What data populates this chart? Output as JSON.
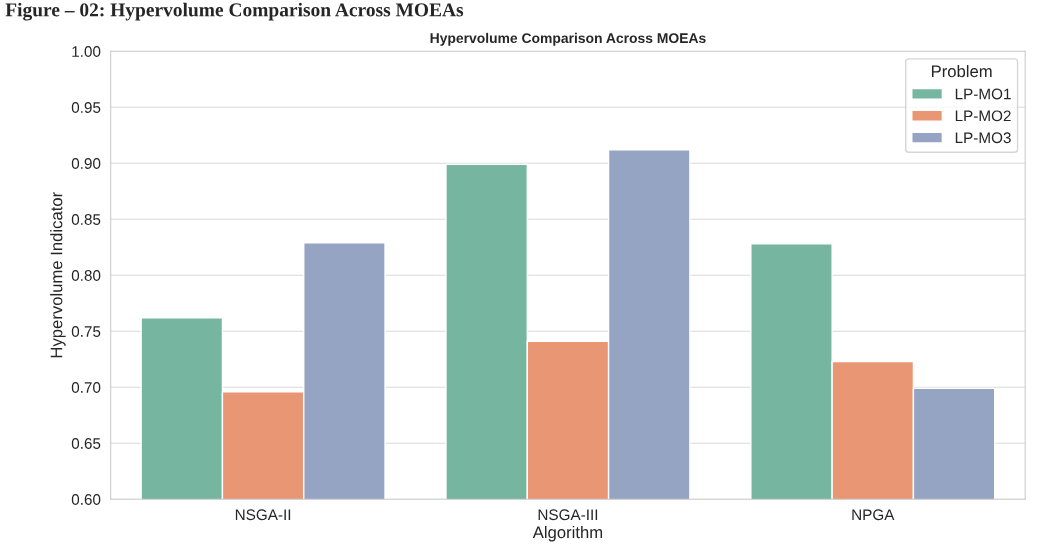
{
  "chart_data": {
    "type": "bar",
    "title": "Hypervolume Comparison Across MOEAs",
    "xlabel": "Algorithm",
    "ylabel": "Hypervolume Indicator",
    "legend_title": "Problem",
    "annotations": [
      "Figure – 02: Hypervolume Comparison Across MOEAs"
    ],
    "categories": [
      "NSGA-II",
      "NSGA-III",
      "NPGA"
    ],
    "series": [
      {
        "name": "LP-MO1",
        "color": "#76b5a0",
        "values": [
          0.762,
          0.899,
          0.828
        ]
      },
      {
        "name": "LP-MO2",
        "color": "#e89674",
        "values": [
          0.696,
          0.741,
          0.723
        ]
      },
      {
        "name": "LP-MO3",
        "color": "#95a4c3",
        "values": [
          0.829,
          0.912,
          0.699
        ]
      }
    ],
    "ylim": [
      0.6,
      1.0
    ],
    "yticks": [
      {
        "value": 0.6,
        "label": "0.60"
      },
      {
        "value": 0.65,
        "label": "0.65"
      },
      {
        "value": 0.7,
        "label": "0.70"
      },
      {
        "value": 0.75,
        "label": "0.75"
      },
      {
        "value": 0.8,
        "label": "0.80"
      },
      {
        "value": 0.85,
        "label": "0.85"
      },
      {
        "value": 0.9,
        "label": "0.90"
      },
      {
        "value": 0.95,
        "label": "0.95"
      },
      {
        "value": 1.0,
        "label": "1.00"
      }
    ],
    "grid": "y",
    "legend": "top right"
  }
}
